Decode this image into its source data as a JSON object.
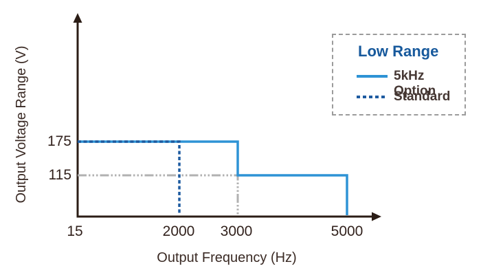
{
  "page": {
    "background": "#ffffff"
  },
  "chart_data": {
    "type": "line",
    "subtype": "step",
    "title": "",
    "xlabel": "Output Frequency (Hz)",
    "ylabel": "Output Voltage Range (V)",
    "xticks": [
      "15",
      "2000",
      "3000",
      "5000"
    ],
    "yticks": [
      "175",
      "115"
    ],
    "xlim": [
      15,
      5500
    ],
    "ylim": [
      0,
      230
    ],
    "grid": false,
    "axis_color": "#2b1d16",
    "axis_arrows": true,
    "series": [
      {
        "name": "5kHz Option",
        "style": "solid",
        "color": "#2e93d5",
        "points": [
          [
            15,
            175
          ],
          [
            3000,
            175
          ],
          [
            3000,
            115
          ],
          [
            5000,
            115
          ],
          [
            5000,
            0
          ]
        ]
      },
      {
        "name": "Standard",
        "style": "dashed",
        "color": "#1e5ba0",
        "points": [
          [
            15,
            175
          ],
          [
            2000,
            175
          ],
          [
            2000,
            0
          ]
        ]
      }
    ],
    "guides": [
      {
        "name": "115V-3000Hz-reference",
        "style": "dash-dot",
        "color": "#b1b1b1",
        "points": [
          [
            15,
            115
          ],
          [
            3000,
            115
          ],
          [
            3000,
            0
          ]
        ]
      }
    ],
    "legend": {
      "title": "Low Range",
      "title_color": "#17599c",
      "position": "top-right",
      "border_color": "#9b9b9b",
      "entries": [
        {
          "label": "5kHz Option",
          "swatch": "solid-line",
          "color": "#2e93d5"
        },
        {
          "label": "Standard",
          "swatch": "dashed-line",
          "color": "#1e5ba0"
        }
      ]
    }
  }
}
